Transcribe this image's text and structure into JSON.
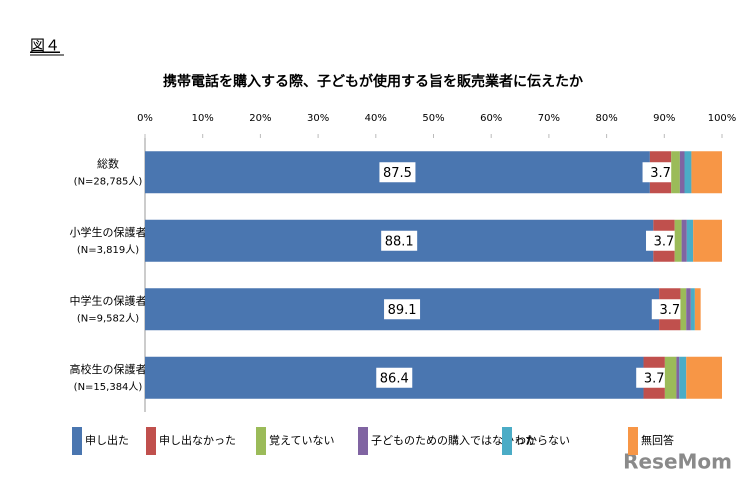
{
  "figure_label": "図４",
  "watermark": "ReseMom",
  "chart_data": {
    "type": "stacked_barh",
    "title": "携帯電話を購入する際、子どもが使用する旨を販売業者に伝えたか",
    "categories": [
      "総数",
      "小学生の保護者",
      "中学生の保護者",
      "高校生の保護者"
    ],
    "category_notes": [
      "(N=28,785人)",
      "(N=3,819人)",
      "(N=9,582人)",
      "(N=15,384人)"
    ],
    "xlim": [
      0,
      100
    ],
    "xticks": [
      {
        "value": 0,
        "label": "0%"
      },
      {
        "value": 10,
        "label": "10%"
      },
      {
        "value": 20,
        "label": "20%"
      },
      {
        "value": 30,
        "label": "30%"
      },
      {
        "value": 40,
        "label": "40%"
      },
      {
        "value": 50,
        "label": "50%"
      },
      {
        "value": 60,
        "label": "60%"
      },
      {
        "value": 70,
        "label": "70%"
      },
      {
        "value": 80,
        "label": "80%"
      },
      {
        "value": 90,
        "label": "90%"
      },
      {
        "value": 100,
        "label": "100%"
      }
    ],
    "legend": "bottom",
    "series": [
      {
        "name": "申し出た",
        "color": "#4a76b0",
        "values": [
          87.5,
          88.1,
          89.1,
          86.4
        ],
        "data_labels": true
      },
      {
        "name": "申し出なかった",
        "color": "#c0504d",
        "values": [
          3.7,
          3.7,
          3.7,
          3.7
        ],
        "data_labels": true
      },
      {
        "name": "覚えていない",
        "color": "#9bbb59",
        "values": [
          1.5,
          1.2,
          1.0,
          2.0
        ]
      },
      {
        "name": "子どものための購入ではなかった",
        "color": "#8064a2",
        "values": [
          0.8,
          0.9,
          0.8,
          0.5
        ]
      },
      {
        "name": "わからない",
        "color": "#4bacc6",
        "values": [
          1.2,
          1.1,
          0.7,
          1.2
        ]
      },
      {
        "name": "無回答",
        "color": "#f79646",
        "values": [
          5.3,
          5.0,
          1.0,
          6.2
        ]
      }
    ]
  }
}
